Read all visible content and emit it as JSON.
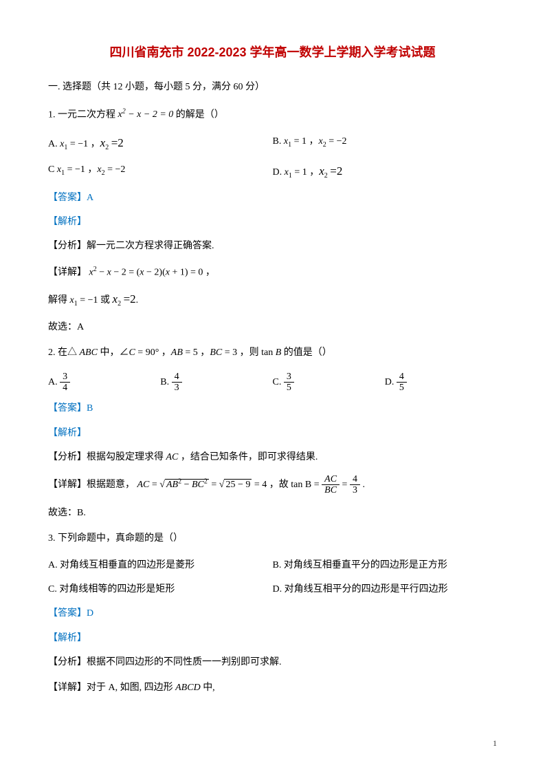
{
  "title": "四川省南充市 2022-2023 学年高一数学上学期入学考试试题",
  "sectionHeader": "一. 选择题（共 12 小题，每小题 5 分，满分 60 分）",
  "q1": {
    "stem_prefix": "1.  一元二次方程 ",
    "stem_math": "x² − x − 2 = 0",
    "stem_suffix": " 的解是（）",
    "optA_label": "A.  ",
    "optA": "x₁ = −1 ，x₂ = 2",
    "optB_label": "B.  ",
    "optB": "x₁ = 1 ，x₂ = −2",
    "optC_label": "C ",
    "optC": "x₁ = −1 ，x₂ = −2",
    "optD_label": "D.  ",
    "optD": "x₁ = 1 ，x₂ = 2",
    "answer": "【答案】A",
    "analysis": "【解析】",
    "fenxi": "【分析】解一元二次方程求得正确答案.",
    "detail_prefix": "【详解】",
    "detail_math": "x² − x − 2 = (x − 2)(x + 1) = 0 ，",
    "solve": "解得 x₁ = −1 或 x₂ = 2.",
    "conclusion": "故选：A"
  },
  "q2": {
    "stem_prefix": "2.  在△ ABC 中，∠C = 90° ，AB = 5 ，BC = 3 ，则 tan B 的值是（）",
    "optA_label": "A.  ",
    "optA_num": "3",
    "optA_den": "4",
    "optB_label": "B.  ",
    "optB_num": "4",
    "optB_den": "3",
    "optC_label": "C.  ",
    "optC_num": "3",
    "optC_den": "5",
    "optD_label": "D.  ",
    "optD_num": "4",
    "optD_den": "5",
    "answer": "【答案】B",
    "analysis": "【解析】",
    "fenxi": "【分析】根据勾股定理求得 AC ，结合已知条件，即可求得结果.",
    "detail_prefix": "【详解】根据题意，",
    "detail_mid1": "AC = √(AB² − BC²) = √(25 − 9) = 4",
    "detail_mid2": "，故 tan B = ",
    "detail_frac_num": "AC",
    "detail_frac_den": "BC",
    "detail_eq": " = ",
    "detail_frac2_num": "4",
    "detail_frac2_den": "3",
    "detail_end": " .",
    "conclusion": "故选：B."
  },
  "q3": {
    "stem": "3.  下列命题中，真命题的是（）",
    "optA": "A.  对角线互相垂直的四边形是菱形",
    "optB": "B.  对角线互相垂直平分的四边形是正方形",
    "optC": "C.  对角线相等的四边形是矩形",
    "optD": "D.  对角线互相平分的四边形是平行四边形",
    "answer": "【答案】D",
    "analysis": "【解析】",
    "fenxi": "【分析】根据不同四边形的不同性质一一判别即可求解.",
    "detail": "【详解】对于 A, 如图, 四边形 ABCD 中,"
  },
  "pageNum": "1"
}
